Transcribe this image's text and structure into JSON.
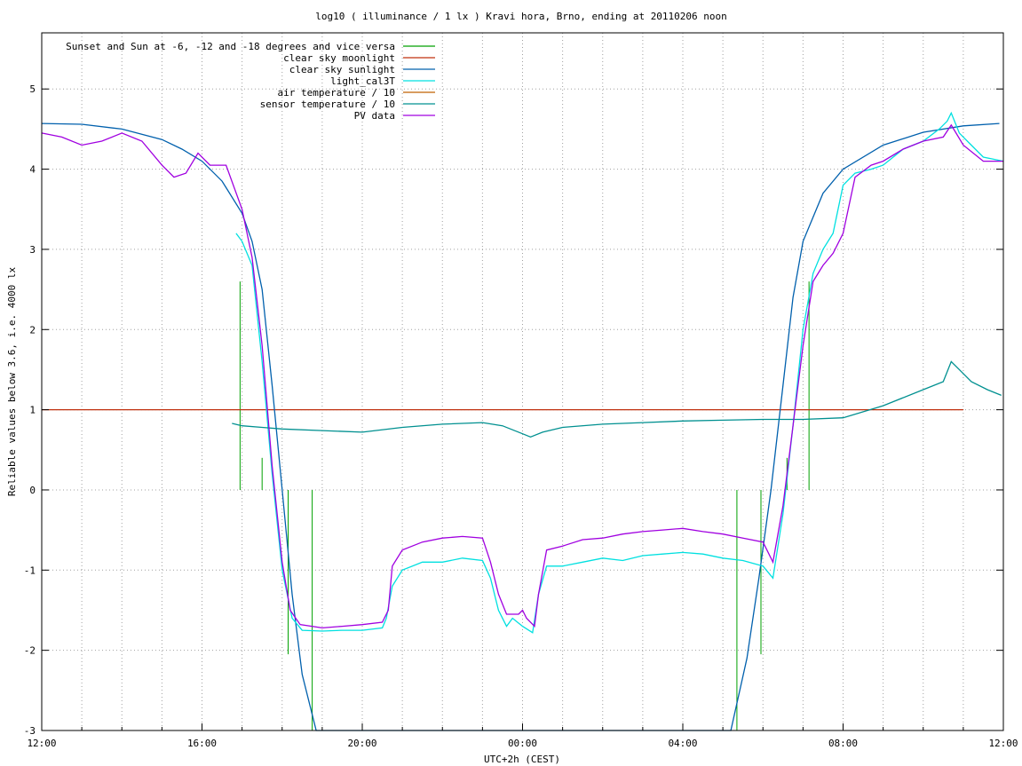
{
  "chart_data": {
    "type": "line",
    "title": "log10 ( illuminance / 1 lx ) Kravi hora, Brno, ending at 20110206 noon",
    "xlabel": "UTC+2h (CEST)",
    "ylabel": "Reliable values below 3.6, i.e. 4000 lx",
    "x_unit": "hours",
    "xlim": [
      12,
      36
    ],
    "ylim": [
      -3,
      5.7
    ],
    "grid": true,
    "legend_position": "top-left",
    "x_ticks": [
      {
        "value": 12,
        "label": "12:00"
      },
      {
        "value": 16,
        "label": "16:00"
      },
      {
        "value": 20,
        "label": "20:00"
      },
      {
        "value": 24,
        "label": "00:00"
      },
      {
        "value": 28,
        "label": "04:00"
      },
      {
        "value": 32,
        "label": "08:00"
      },
      {
        "value": 36,
        "label": "12:00"
      }
    ],
    "x_minor_grid": [
      12,
      13,
      14,
      15,
      16,
      17,
      18,
      19,
      20,
      21,
      22,
      23,
      24,
      25,
      26,
      27,
      28,
      29,
      30,
      31,
      32,
      33,
      34,
      35,
      36
    ],
    "y_ticks": [
      {
        "value": -3,
        "label": "-3"
      },
      {
        "value": -2,
        "label": "-2"
      },
      {
        "value": -1,
        "label": "-1"
      },
      {
        "value": 0,
        "label": "0"
      },
      {
        "value": 1,
        "label": "1"
      },
      {
        "value": 2,
        "label": "2"
      },
      {
        "value": 3,
        "label": "3"
      },
      {
        "value": 4,
        "label": "4"
      },
      {
        "value": 5,
        "label": "5"
      }
    ],
    "series": [
      {
        "name": "Sunset and Sun at -6, -12 and -18 degrees and vice versa",
        "color": "#00a000",
        "style": "impulses",
        "points": [
          [
            16.95,
            2.6
          ],
          [
            17.5,
            0.4
          ],
          [
            18.15,
            -2.05
          ],
          [
            18.75,
            -3
          ],
          [
            29.35,
            -3
          ],
          [
            29.95,
            -2.05
          ],
          [
            30.6,
            0.4
          ],
          [
            31.15,
            2.6
          ]
        ]
      },
      {
        "name": "clear sky moonlight",
        "color": "#c0300f",
        "points": [
          [
            12,
            1
          ],
          [
            35,
            1
          ]
        ]
      },
      {
        "name": "clear sky sunlight",
        "color": "#0060ad",
        "points": [
          [
            12,
            4.57
          ],
          [
            13,
            4.56
          ],
          [
            14,
            4.5
          ],
          [
            15,
            4.37
          ],
          [
            15.5,
            4.25
          ],
          [
            16,
            4.1
          ],
          [
            16.5,
            3.85
          ],
          [
            17,
            3.45
          ],
          [
            17.25,
            3.1
          ],
          [
            17.5,
            2.5
          ],
          [
            17.75,
            1.3
          ],
          [
            18,
            0.0
          ],
          [
            18.25,
            -1.3
          ],
          [
            18.5,
            -2.3
          ],
          [
            18.85,
            -3
          ],
          [
            29.2,
            -3
          ],
          [
            29.6,
            -2.1
          ],
          [
            29.9,
            -1.1
          ],
          [
            30.2,
            0.0
          ],
          [
            30.5,
            1.3
          ],
          [
            30.75,
            2.4
          ],
          [
            31.0,
            3.1
          ],
          [
            31.5,
            3.7
          ],
          [
            32,
            4.0
          ],
          [
            33,
            4.3
          ],
          [
            34,
            4.46
          ],
          [
            35,
            4.54
          ],
          [
            35.9,
            4.57
          ]
        ]
      },
      {
        "name": "light_cal3T",
        "color": "#00e0e0",
        "points": [
          [
            16.85,
            3.2
          ],
          [
            17.0,
            3.1
          ],
          [
            17.25,
            2.8
          ],
          [
            17.5,
            1.6
          ],
          [
            17.75,
            0.2
          ],
          [
            18.0,
            -1.0
          ],
          [
            18.25,
            -1.6
          ],
          [
            18.5,
            -1.75
          ],
          [
            19.0,
            -1.76
          ],
          [
            19.5,
            -1.75
          ],
          [
            20.0,
            -1.75
          ],
          [
            20.5,
            -1.72
          ],
          [
            20.6,
            -1.6
          ],
          [
            20.75,
            -1.2
          ],
          [
            21,
            -1.0
          ],
          [
            21.5,
            -0.9
          ],
          [
            22,
            -0.9
          ],
          [
            22.5,
            -0.85
          ],
          [
            23,
            -0.88
          ],
          [
            23.2,
            -1.1
          ],
          [
            23.4,
            -1.5
          ],
          [
            23.6,
            -1.7
          ],
          [
            23.75,
            -1.6
          ],
          [
            24.0,
            -1.7
          ],
          [
            24.25,
            -1.78
          ],
          [
            24.4,
            -1.3
          ],
          [
            24.6,
            -0.95
          ],
          [
            25,
            -0.95
          ],
          [
            25.5,
            -0.9
          ],
          [
            26,
            -0.85
          ],
          [
            26.5,
            -0.88
          ],
          [
            27,
            -0.82
          ],
          [
            27.5,
            -0.8
          ],
          [
            28,
            -0.78
          ],
          [
            28.5,
            -0.8
          ],
          [
            29,
            -0.85
          ],
          [
            29.5,
            -0.88
          ],
          [
            30.0,
            -0.95
          ],
          [
            30.25,
            -1.1
          ],
          [
            30.5,
            -0.3
          ],
          [
            30.75,
            0.8
          ],
          [
            31.0,
            2.0
          ],
          [
            31.25,
            2.7
          ],
          [
            31.5,
            3.0
          ],
          [
            31.75,
            3.2
          ],
          [
            32,
            3.8
          ],
          [
            32.3,
            3.95
          ],
          [
            32.7,
            4.0
          ],
          [
            33,
            4.05
          ],
          [
            33.5,
            4.25
          ],
          [
            34,
            4.35
          ],
          [
            34.4,
            4.5
          ],
          [
            34.6,
            4.6
          ],
          [
            34.7,
            4.7
          ],
          [
            34.9,
            4.45
          ],
          [
            35.2,
            4.3
          ],
          [
            35.5,
            4.15
          ],
          [
            36,
            4.1
          ]
        ]
      },
      {
        "name": "air temperature / 10",
        "color": "#c06000",
        "points": []
      },
      {
        "name": "sensor temperature / 10",
        "color": "#009090",
        "points": [
          [
            16.75,
            0.83
          ],
          [
            17,
            0.8
          ],
          [
            17.5,
            0.78
          ],
          [
            18,
            0.76
          ],
          [
            19,
            0.74
          ],
          [
            20,
            0.72
          ],
          [
            21,
            0.78
          ],
          [
            22,
            0.82
          ],
          [
            23,
            0.84
          ],
          [
            23.5,
            0.8
          ],
          [
            24,
            0.7
          ],
          [
            24.2,
            0.66
          ],
          [
            24.5,
            0.72
          ],
          [
            25,
            0.78
          ],
          [
            26,
            0.82
          ],
          [
            27,
            0.84
          ],
          [
            28,
            0.86
          ],
          [
            29,
            0.87
          ],
          [
            30,
            0.88
          ],
          [
            31,
            0.88
          ],
          [
            32,
            0.9
          ],
          [
            33,
            1.05
          ],
          [
            34,
            1.25
          ],
          [
            34.5,
            1.35
          ],
          [
            34.7,
            1.6
          ],
          [
            34.9,
            1.5
          ],
          [
            35.2,
            1.35
          ],
          [
            35.6,
            1.25
          ],
          [
            35.95,
            1.18
          ]
        ]
      },
      {
        "name": "PV data",
        "color": "#a000e0",
        "points": [
          [
            12,
            4.45
          ],
          [
            12.5,
            4.4
          ],
          [
            13,
            4.3
          ],
          [
            13.5,
            4.35
          ],
          [
            14,
            4.45
          ],
          [
            14.5,
            4.35
          ],
          [
            15,
            4.05
          ],
          [
            15.3,
            3.9
          ],
          [
            15.6,
            3.95
          ],
          [
            15.9,
            4.2
          ],
          [
            16.2,
            4.05
          ],
          [
            16.6,
            4.05
          ],
          [
            17.0,
            3.5
          ],
          [
            17.25,
            2.9
          ],
          [
            17.5,
            1.8
          ],
          [
            17.75,
            0.3
          ],
          [
            18.0,
            -0.9
          ],
          [
            18.2,
            -1.5
          ],
          [
            18.45,
            -1.68
          ],
          [
            19,
            -1.72
          ],
          [
            19.5,
            -1.7
          ],
          [
            20,
            -1.68
          ],
          [
            20.5,
            -1.65
          ],
          [
            20.65,
            -1.5
          ],
          [
            20.75,
            -0.95
          ],
          [
            21,
            -0.75
          ],
          [
            21.5,
            -0.65
          ],
          [
            22,
            -0.6
          ],
          [
            22.5,
            -0.58
          ],
          [
            23,
            -0.6
          ],
          [
            23.2,
            -0.9
          ],
          [
            23.4,
            -1.3
          ],
          [
            23.6,
            -1.55
          ],
          [
            23.9,
            -1.55
          ],
          [
            24.0,
            -1.5
          ],
          [
            24.1,
            -1.6
          ],
          [
            24.3,
            -1.7
          ],
          [
            24.4,
            -1.3
          ],
          [
            24.6,
            -0.75
          ],
          [
            25,
            -0.7
          ],
          [
            25.5,
            -0.62
          ],
          [
            26,
            -0.6
          ],
          [
            26.5,
            -0.55
          ],
          [
            27,
            -0.52
          ],
          [
            27.5,
            -0.5
          ],
          [
            28,
            -0.48
          ],
          [
            28.5,
            -0.52
          ],
          [
            29,
            -0.55
          ],
          [
            29.5,
            -0.6
          ],
          [
            30.0,
            -0.65
          ],
          [
            30.25,
            -0.9
          ],
          [
            30.5,
            -0.2
          ],
          [
            30.75,
            0.8
          ],
          [
            31.0,
            1.8
          ],
          [
            31.25,
            2.6
          ],
          [
            31.5,
            2.8
          ],
          [
            31.75,
            2.95
          ],
          [
            32,
            3.2
          ],
          [
            32.3,
            3.9
          ],
          [
            32.7,
            4.05
          ],
          [
            33,
            4.1
          ],
          [
            33.5,
            4.25
          ],
          [
            34,
            4.35
          ],
          [
            34.5,
            4.4
          ],
          [
            34.7,
            4.55
          ],
          [
            35,
            4.3
          ],
          [
            35.5,
            4.1
          ],
          [
            36,
            4.1
          ]
        ]
      }
    ]
  }
}
